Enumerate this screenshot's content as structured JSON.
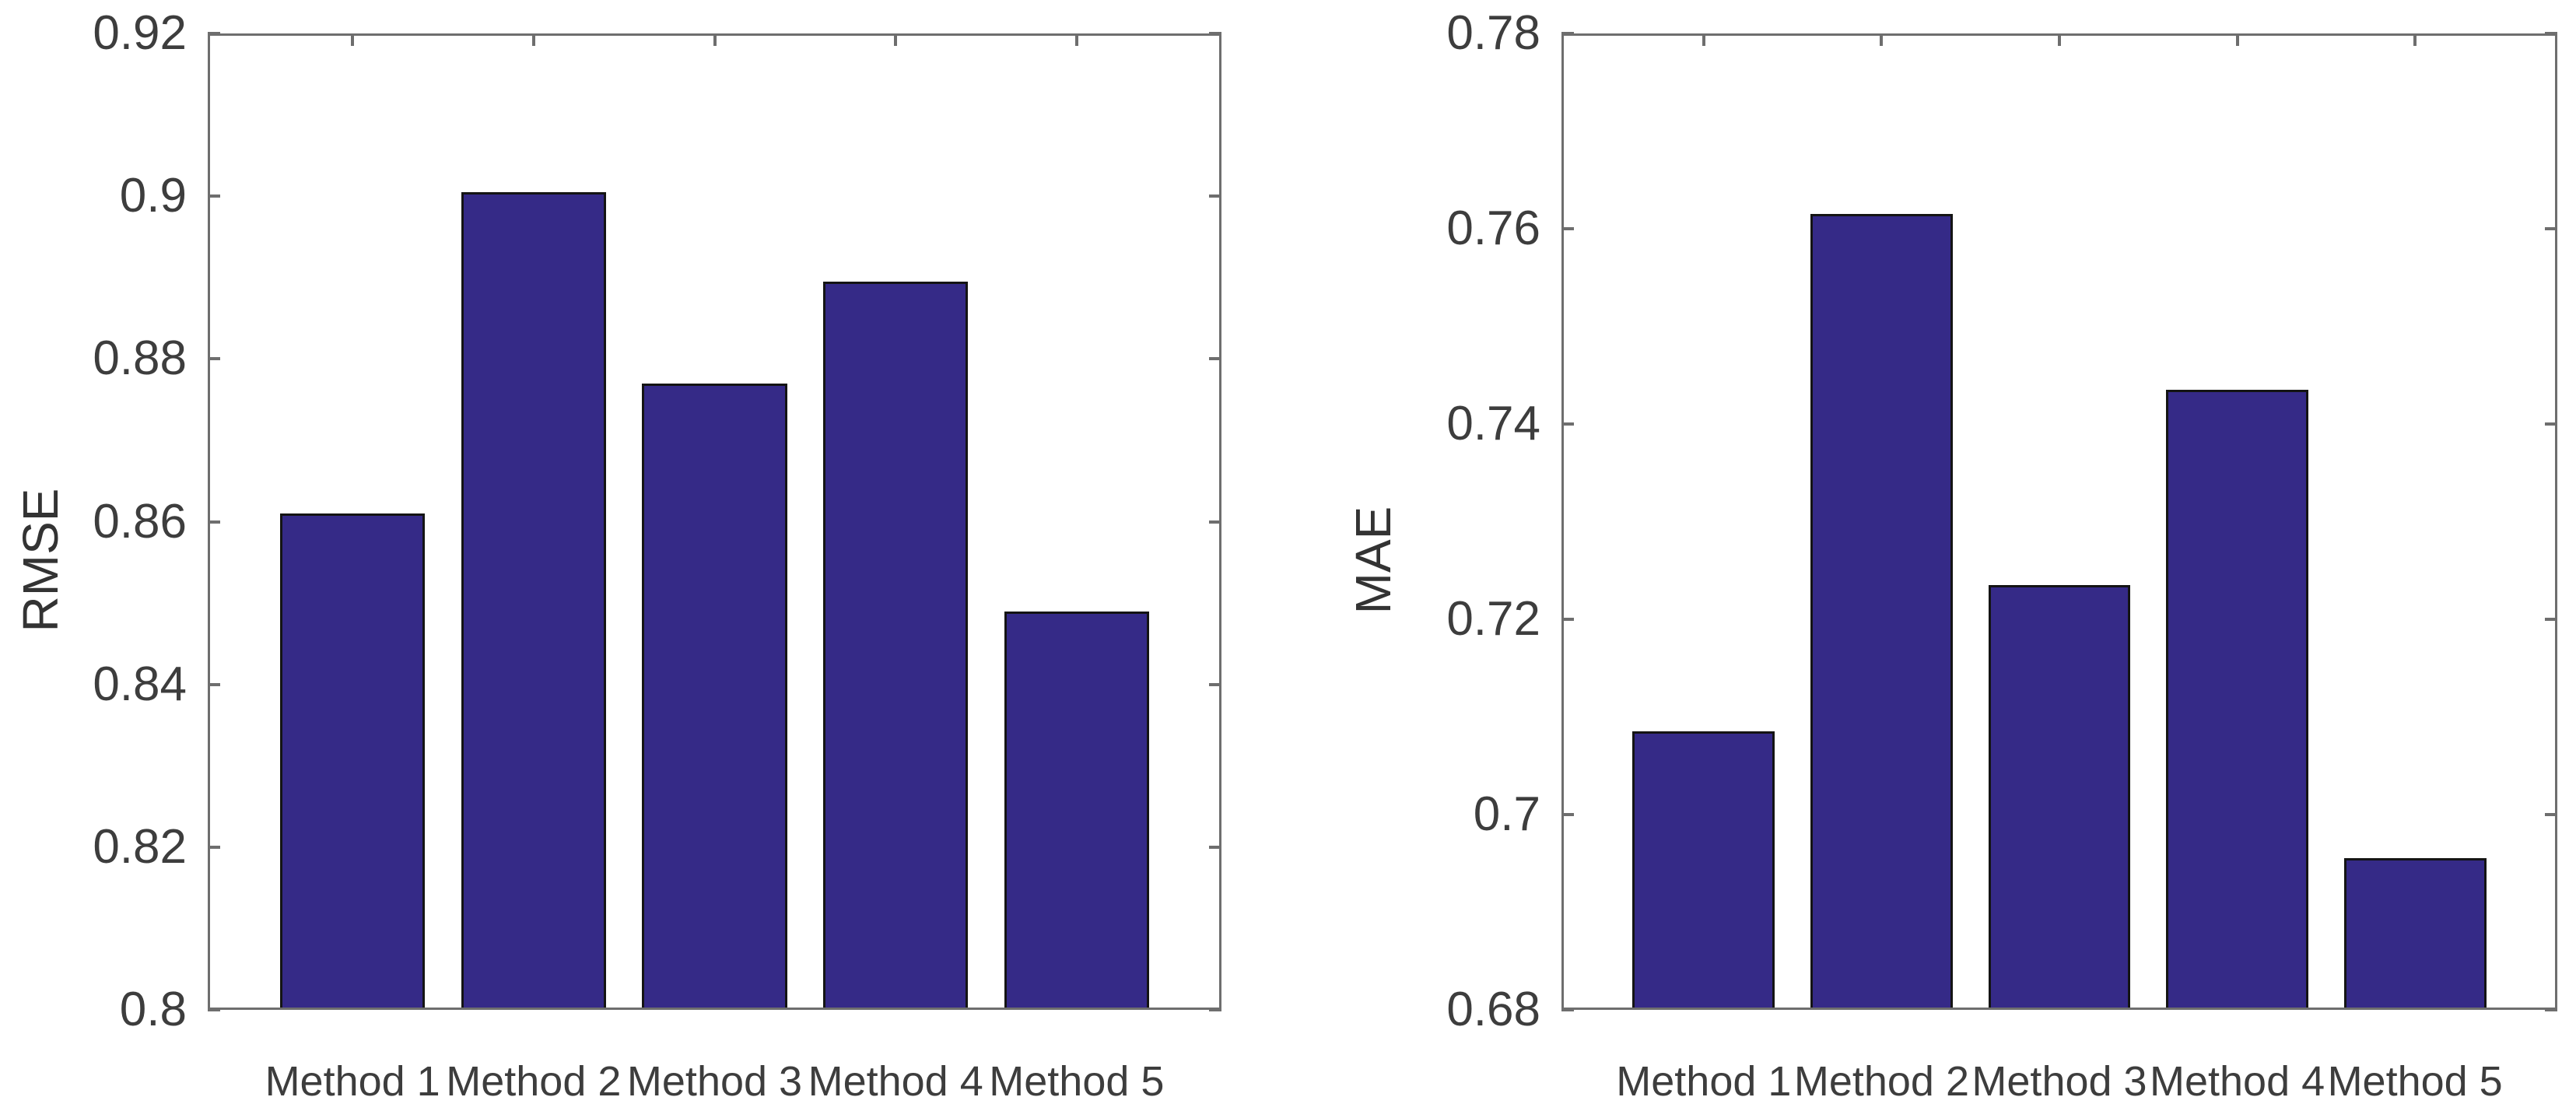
{
  "figure": {
    "background": "#ffffff",
    "description_titles": {
      "left_panel_ylabel": "RMSE",
      "right_panel_ylabel": "MAE"
    }
  },
  "chart_data": [
    {
      "type": "bar",
      "title": "",
      "xlabel": "",
      "ylabel": "RMSE",
      "categories": [
        "Method 1",
        "Method 2",
        "Method 3",
        "Method 4",
        "Method 5"
      ],
      "values": [
        0.861,
        0.9005,
        0.877,
        0.8895,
        0.849
      ],
      "ylim": [
        0.8,
        0.92
      ],
      "ytick_step": 0.02,
      "ytick_labels": [
        "0.8",
        "0.82",
        "0.84",
        "0.86",
        "0.88",
        "0.9",
        "0.92"
      ],
      "grid": false,
      "legend": "none",
      "bar_width_fraction": 0.8,
      "bar_color": "#352a87",
      "bar_edge_color": "#141414",
      "axis_color": "#6e6e6e",
      "tick_label_color": "#3d3d3d",
      "axis_label_color": "#333333"
    },
    {
      "type": "bar",
      "title": "",
      "xlabel": "",
      "ylabel": "MAE",
      "categories": [
        "Method 1",
        "Method 2",
        "Method 3",
        "Method 4",
        "Method 5"
      ],
      "values": [
        0.7085,
        0.7615,
        0.7235,
        0.7435,
        0.6955
      ],
      "ylim": [
        0.68,
        0.78
      ],
      "ytick_step": 0.02,
      "ytick_labels": [
        "0.68",
        "0.7",
        "0.72",
        "0.74",
        "0.76",
        "0.78"
      ],
      "grid": false,
      "legend": "none",
      "bar_width_fraction": 0.8,
      "bar_color": "#352a87",
      "bar_edge_color": "#141414",
      "axis_color": "#6e6e6e",
      "tick_label_color": "#3d3d3d",
      "axis_label_color": "#333333"
    }
  ]
}
